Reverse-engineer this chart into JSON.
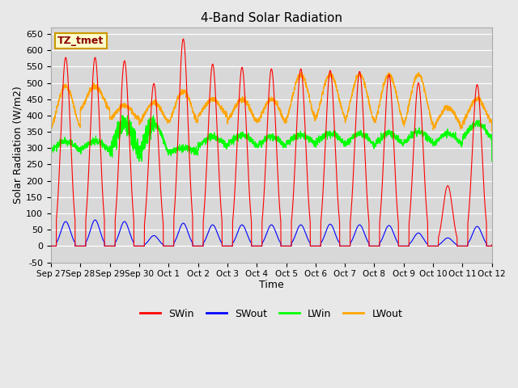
{
  "title": "4-Band Solar Radiation",
  "xlabel": "Time",
  "ylabel": "Solar Radiation (W/m2)",
  "ylim": [
    -50,
    670
  ],
  "legend_label": "TZ_tmet",
  "series_labels": [
    "SWin",
    "SWout",
    "LWin",
    "LWout"
  ],
  "series_colors": [
    "red",
    "blue",
    "#00ff00",
    "orange"
  ],
  "fig_bg": "#e8e8e8",
  "plot_bg": "#d8d8d8",
  "xtick_labels": [
    "Sep 27",
    "Sep 28",
    "Sep 29",
    "Sep 30",
    "Oct 1",
    "Oct 2",
    "Oct 3",
    "Oct 4",
    "Oct 5",
    "Oct 6",
    "Oct 7",
    "Oct 8",
    "Oct 9",
    "Oct 10",
    "Oct 11",
    "Oct 12"
  ],
  "SWin_peaks": [
    578,
    578,
    568,
    498,
    635,
    558,
    548,
    543,
    543,
    538,
    535,
    525,
    500,
    185,
    495
  ],
  "SWout_peaks": [
    75,
    80,
    75,
    32,
    70,
    65,
    65,
    65,
    65,
    67,
    65,
    63,
    40,
    25,
    60
  ],
  "LWout_base": [
    365,
    420,
    390,
    380,
    380,
    400,
    385,
    380,
    390,
    395,
    385,
    380,
    375,
    365,
    380
  ],
  "LWout_peaks": [
    490,
    490,
    430,
    440,
    475,
    450,
    450,
    450,
    525,
    525,
    525,
    525,
    525,
    425,
    450
  ],
  "LWin_base": [
    295,
    295,
    285,
    285,
    290,
    305,
    310,
    305,
    315,
    315,
    310,
    310,
    315,
    310,
    330
  ],
  "LWin_peaks": [
    320,
    320,
    375,
    375,
    300,
    335,
    340,
    335,
    340,
    345,
    345,
    345,
    350,
    345,
    375
  ]
}
